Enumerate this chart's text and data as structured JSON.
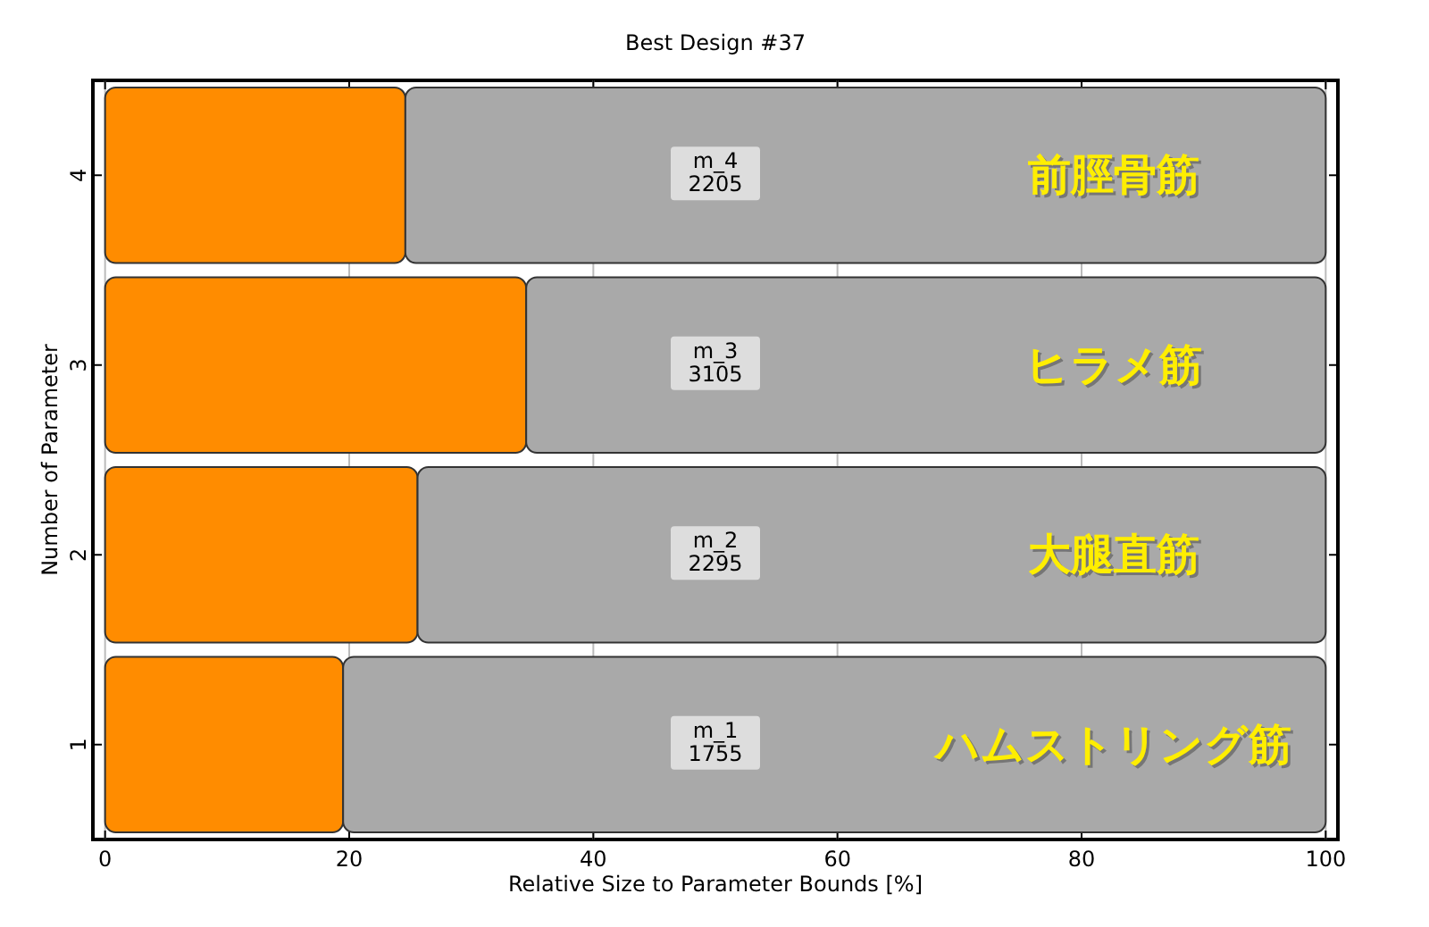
{
  "chart_data": {
    "type": "bar",
    "orientation": "horizontal",
    "stacked": true,
    "title": "Best Design #37",
    "xlabel": "Relative Size to Parameter Bounds [%]",
    "ylabel": "Number of Parameter",
    "categories": [
      "4",
      "3",
      "2",
      "1"
    ],
    "series": [
      {
        "color": "#ff8c00",
        "values": [
          24.6,
          34.5,
          25.6,
          19.5
        ]
      },
      {
        "color": "#a9a9a9",
        "values": [
          75.4,
          65.5,
          74.4,
          80.5
        ]
      }
    ],
    "xlim": [
      -1,
      101
    ],
    "xticks": [
      0,
      20,
      40,
      60,
      80,
      100
    ],
    "grid": "x",
    "annotations": [
      {
        "text": "m_4\n2205",
        "y": "4"
      },
      {
        "text": "m_3\n3105",
        "y": "3"
      },
      {
        "text": "m_2\n2295",
        "y": "2"
      },
      {
        "text": "m_1\n1755",
        "y": "1"
      },
      {
        "text": "前脛骨筋",
        "y": "4"
      },
      {
        "text": "ヒラメ筋",
        "y": "3"
      },
      {
        "text": "大腿直筋",
        "y": "2"
      },
      {
        "text": "ハムストリング筋",
        "y": "1"
      }
    ]
  }
}
